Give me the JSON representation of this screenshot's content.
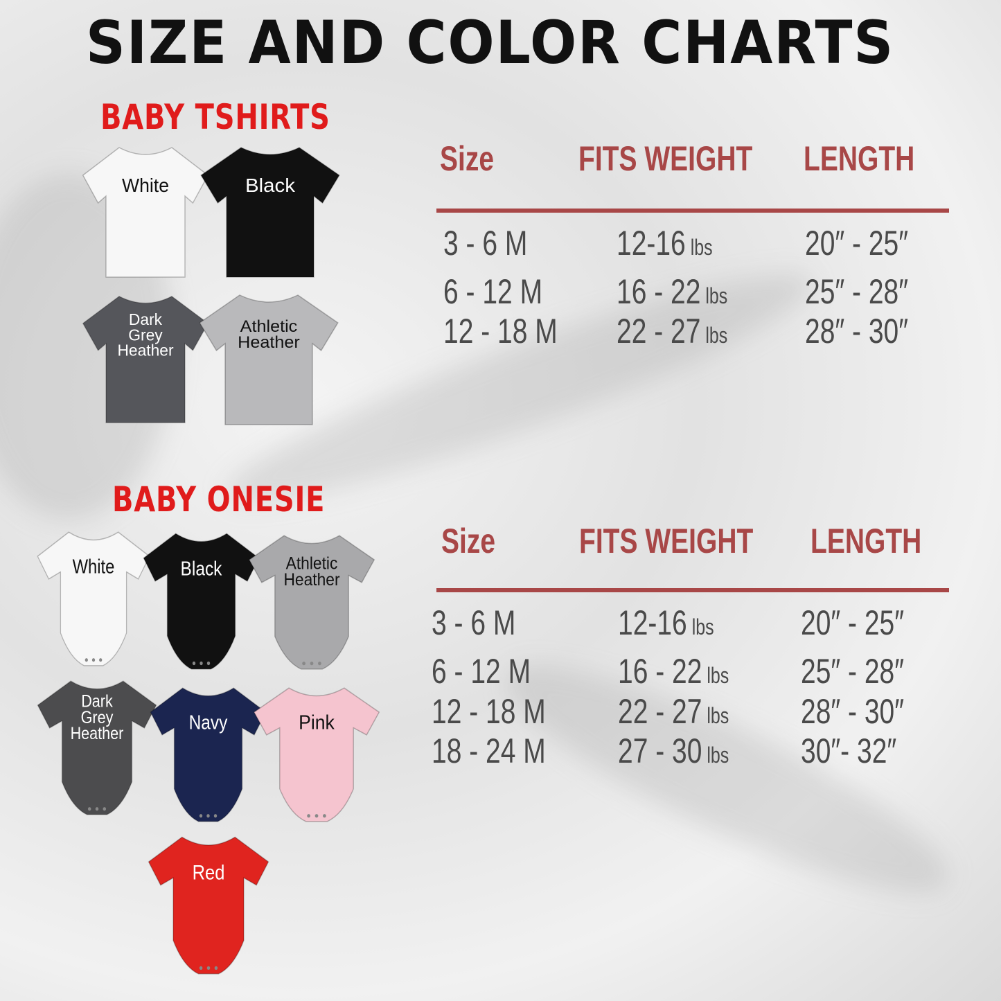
{
  "title": "SIZE AND COLOR CHARTS",
  "accent_color": "#a84747",
  "section_color": "#e01b1b",
  "tshirts": {
    "label": "BABY TSHIRTS",
    "items": [
      {
        "label": "White",
        "hex": "#f7f7f7",
        "text": "#111"
      },
      {
        "label": "Black",
        "hex": "#111111",
        "text": "#fff"
      },
      {
        "label": "Dark\nGrey\nHeather",
        "hex": "#55565b",
        "text": "#fff"
      },
      {
        "label": "Athletic\nHeather",
        "hex": "#b9b9bb",
        "text": "#111"
      }
    ]
  },
  "onesies": {
    "label": "BABY ONESIE",
    "items": [
      {
        "label": "White",
        "hex": "#f7f7f7",
        "text": "#111"
      },
      {
        "label": "Black",
        "hex": "#111111",
        "text": "#fff"
      },
      {
        "label": "Athletic\nHeather",
        "hex": "#a9a9ab",
        "text": "#111"
      },
      {
        "label": "Dark\nGrey\nHeather",
        "hex": "#4c4c4e",
        "text": "#fff"
      },
      {
        "label": "Navy",
        "hex": "#1b2550",
        "text": "#fff"
      },
      {
        "label": "Pink",
        "hex": "#f5c4cf",
        "text": "#111"
      },
      {
        "label": "Red",
        "hex": "#e0241f",
        "text": "#fff"
      }
    ]
  },
  "tables": [
    {
      "headers": [
        "Size",
        "FITS WEIGHT",
        "LENGTH"
      ],
      "rows": [
        {
          "size": "3 - 6 M",
          "weight": "12-16",
          "unit": "lbs",
          "length": "20″ - 25″"
        },
        {
          "size": "6 - 12 M",
          "weight": "16 - 22",
          "unit": "lbs",
          "length": "25″ - 28″"
        },
        {
          "size": "12 - 18 M",
          "weight": "22 - 27",
          "unit": "lbs",
          "length": "28″ - 30″"
        }
      ]
    },
    {
      "headers": [
        "Size",
        "FITS WEIGHT",
        "LENGTH"
      ],
      "rows": [
        {
          "size": "3 - 6 M",
          "weight": "12-16",
          "unit": "lbs",
          "length": "20″ - 25″"
        },
        {
          "size": "6 - 12 M",
          "weight": "16 - 22",
          "unit": "lbs",
          "length": "25″ - 28″"
        },
        {
          "size": "12 - 18 M",
          "weight": "22 - 27",
          "unit": "lbs",
          "length": "28″ - 30″"
        },
        {
          "size": "18 - 24 M",
          "weight": "27 - 30",
          "unit": "lbs",
          "length": "30″- 32″"
        }
      ]
    }
  ]
}
